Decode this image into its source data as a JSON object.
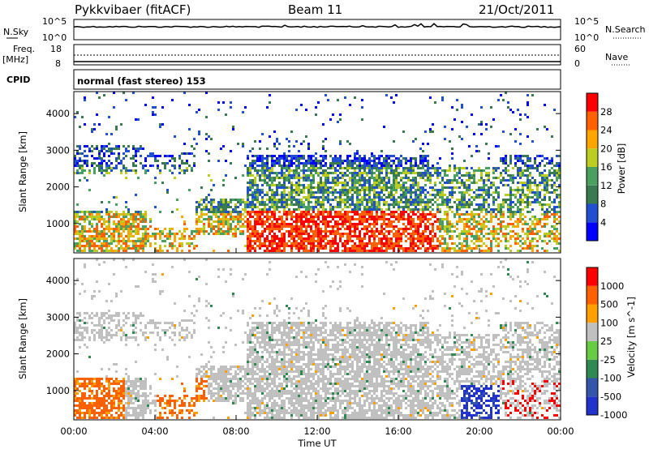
{
  "header": {
    "station": "Pykkvibaer (fitACF)",
    "beam": "Beam 11",
    "date": "21/Oct/2011"
  },
  "noise_panel": {
    "left_label": "N.Sky",
    "left_ticks": [
      "10^5",
      "10^0"
    ],
    "right_label": "N.Search",
    "right_ticks": [
      "10^5",
      "10^0"
    ]
  },
  "freq_panel": {
    "left_label_1": "Freq.",
    "left_label_2": "[MHz]",
    "left_ticks": [
      "18",
      "8"
    ],
    "right_label": "Nave",
    "right_ticks": [
      "60",
      "0"
    ]
  },
  "cpid": {
    "label": "CPID",
    "text": "normal (fast stereo) 153"
  },
  "x_axis": {
    "label": "Time UT",
    "ticks": [
      "00:00",
      "04:00",
      "08:00",
      "12:00",
      "16:00",
      "20:00",
      "00:00"
    ]
  },
  "chart_data": [
    {
      "type": "heatmap",
      "name": "power-panel",
      "ylabel": "Slant Range [km]",
      "yticks": [
        1000,
        2000,
        3000,
        4000
      ],
      "ylim": [
        200,
        4600
      ],
      "xlim_hours": [
        0,
        24
      ],
      "colorbar_label": "Power [dB]",
      "colorbar_ticks": [
        4,
        8,
        12,
        16,
        20,
        24,
        28
      ],
      "colors": [
        "#0000ff",
        "#2050d0",
        "#3a7a50",
        "#4aa060",
        "#bccc20",
        "#ffa500",
        "#ff6000",
        "#ff0000"
      ]
    },
    {
      "type": "heatmap",
      "name": "velocity-panel",
      "ylabel": "Slant Range [km]",
      "yticks": [
        1000,
        2000,
        3000,
        4000
      ],
      "ylim": [
        200,
        4600
      ],
      "xlim_hours": [
        0,
        24
      ],
      "colorbar_label": "Velocity [m s^-1]",
      "colorbar_ticks": [
        1000,
        500,
        100,
        25,
        -25,
        -100,
        -500,
        -1000
      ],
      "colors": [
        "#2233cc",
        "#3355aa",
        "#2e8a50",
        "#66cc44",
        "#c0c0c0",
        "#ffa000",
        "#ff6000",
        "#ff0000"
      ]
    }
  ]
}
